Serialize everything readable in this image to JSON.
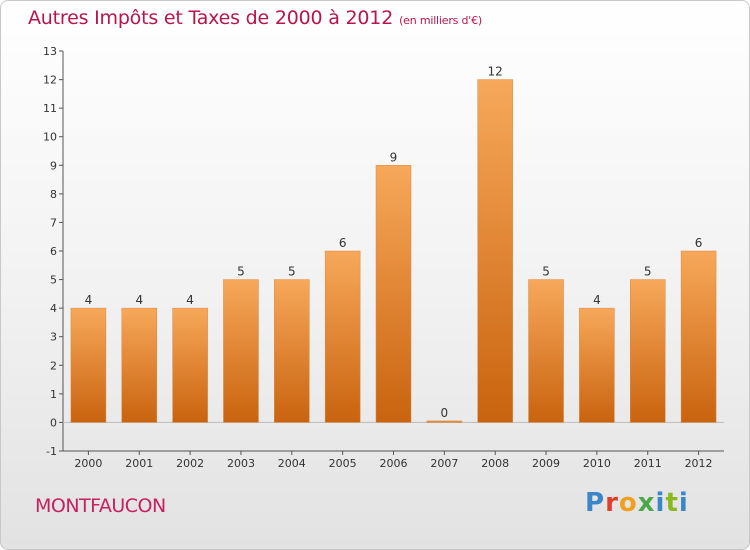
{
  "header": {
    "title": "Autres Impôts et Taxes de 2000 à 2012",
    "subtitle": "(en milliers d'€)"
  },
  "footer": {
    "city": "MONTFAUCON",
    "brand": "Proxiti"
  },
  "colors": {
    "bar_top": "#f7a85a",
    "bar_bottom": "#c9630f",
    "title": "#b8164a",
    "axis": "#555555"
  },
  "chart_data": {
    "type": "bar",
    "title": "Autres Impôts et Taxes de 2000 à 2012",
    "subtitle": "(en milliers d'€)",
    "categories": [
      "2000",
      "2001",
      "2002",
      "2003",
      "2004",
      "2005",
      "2006",
      "2007",
      "2008",
      "2009",
      "2010",
      "2011",
      "2012"
    ],
    "values": [
      4,
      4,
      4,
      5,
      5,
      6,
      9,
      0,
      12,
      5,
      4,
      5,
      6
    ],
    "ylim": [
      -1,
      13
    ],
    "yticks": [
      -1,
      0,
      1,
      2,
      3,
      4,
      5,
      6,
      7,
      8,
      9,
      10,
      11,
      12,
      13
    ],
    "grid": false,
    "data_labels": true
  }
}
